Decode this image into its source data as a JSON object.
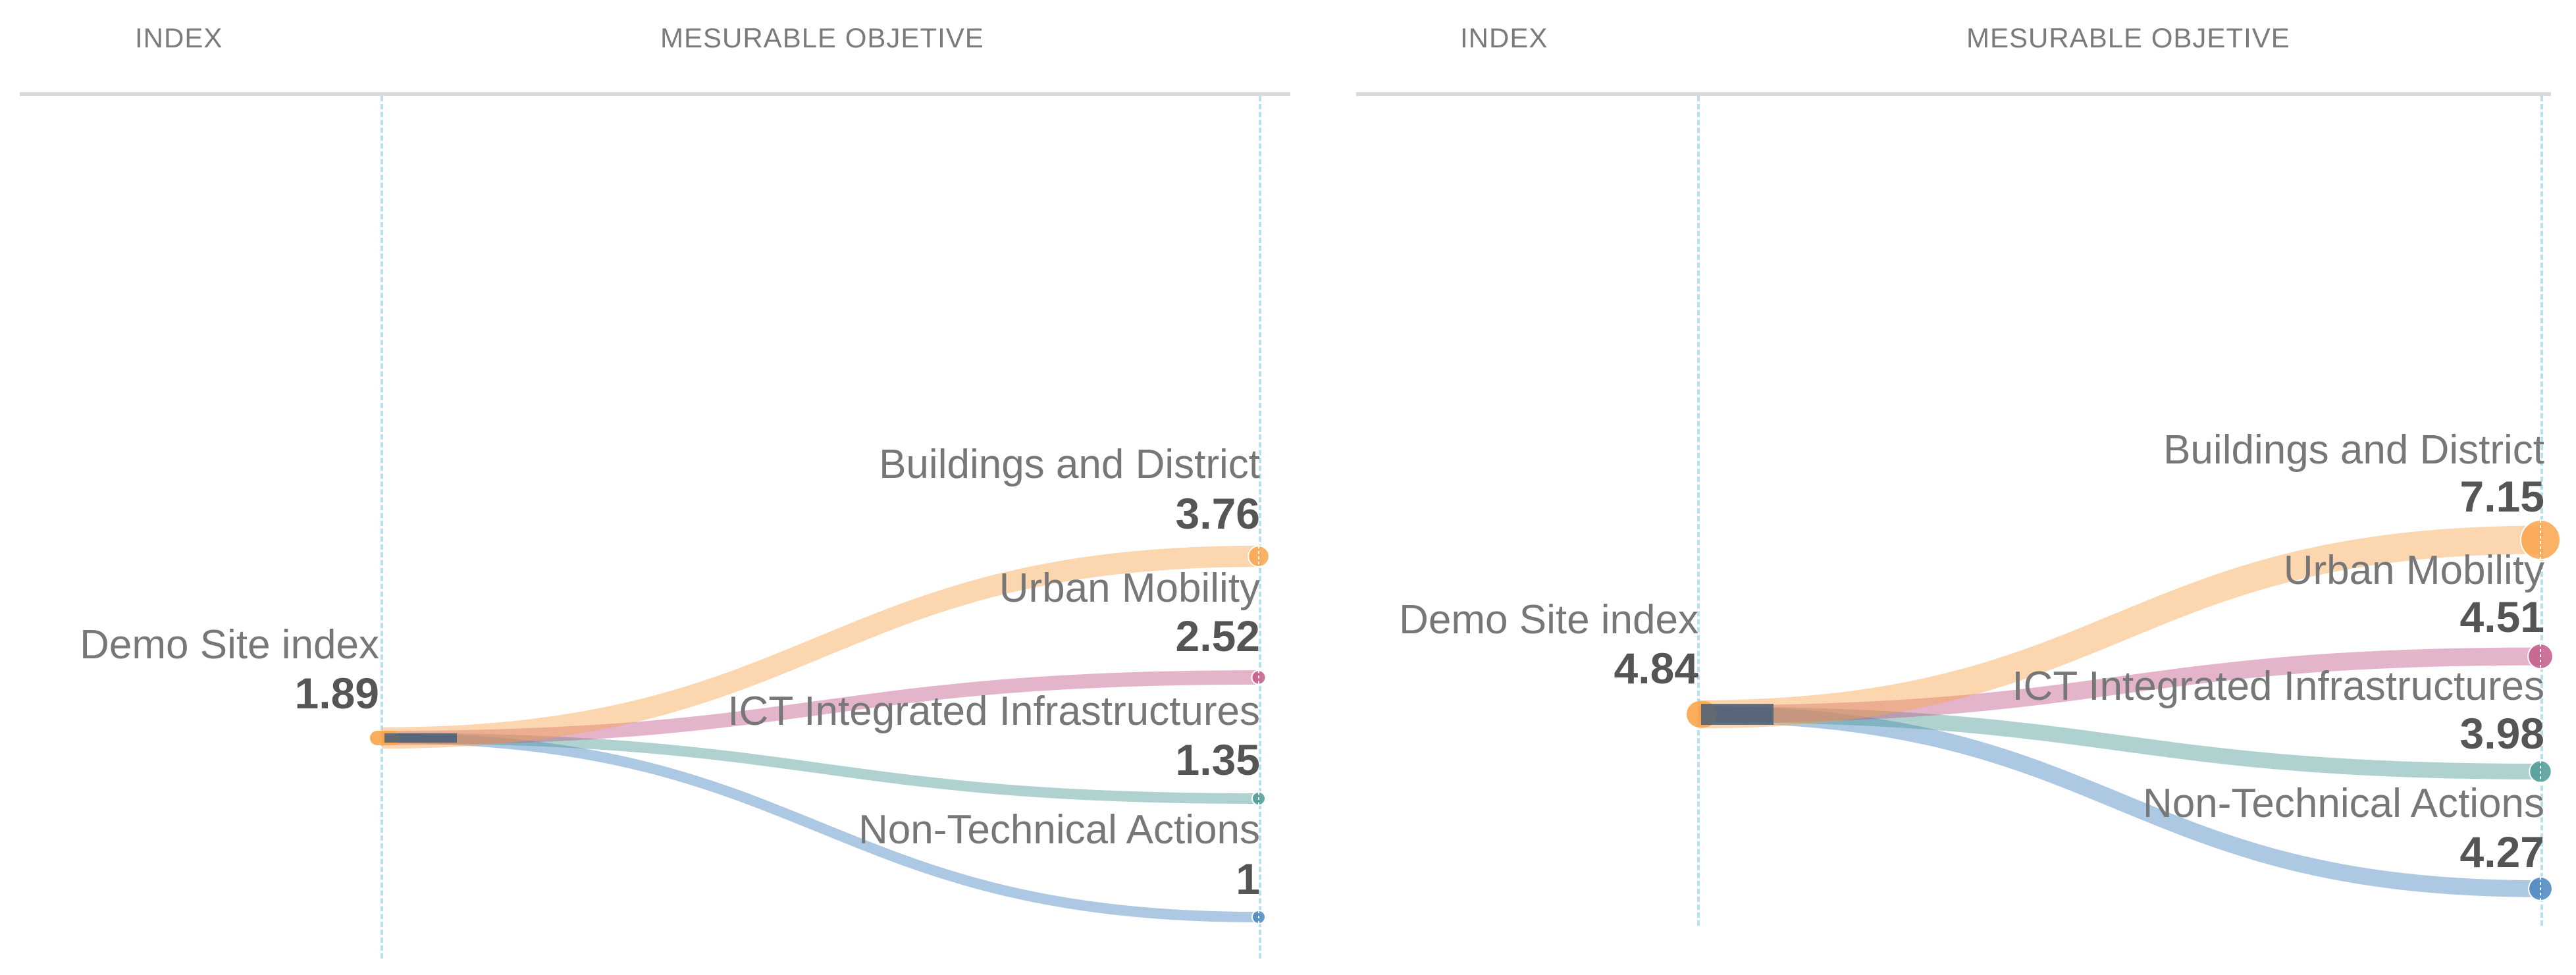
{
  "headers": {
    "index": "INDEX",
    "objective": "MESURABLE OBJETIVE"
  },
  "chart_data": [
    {
      "type": "sankey",
      "title": "",
      "source": {
        "name": "Demo Site index",
        "value": "1.89"
      },
      "targets": [
        {
          "name": "Buildings and District",
          "value": "3.76",
          "color": "#f9a54b"
        },
        {
          "name": "Urban Mobility",
          "value": "2.52",
          "color": "#c45a8a"
        },
        {
          "name": "ICT Integrated Infrastructures",
          "value": "1.35",
          "color": "#4e9a96"
        },
        {
          "name": "Non-Technical Actions",
          "value": "1",
          "color": "#4a86c0"
        }
      ]
    },
    {
      "type": "sankey",
      "title": "",
      "source": {
        "name": "Demo Site index",
        "value": "4.84"
      },
      "targets": [
        {
          "name": "Buildings and District",
          "value": "7.15",
          "color": "#f9a54b"
        },
        {
          "name": "Urban Mobility",
          "value": "4.51",
          "color": "#c45a8a"
        },
        {
          "name": "ICT Integrated Infrastructures",
          "value": "3.98",
          "color": "#4e9a96"
        },
        {
          "name": "Non-Technical Actions",
          "value": "4.27",
          "color": "#4a86c0"
        }
      ]
    }
  ]
}
